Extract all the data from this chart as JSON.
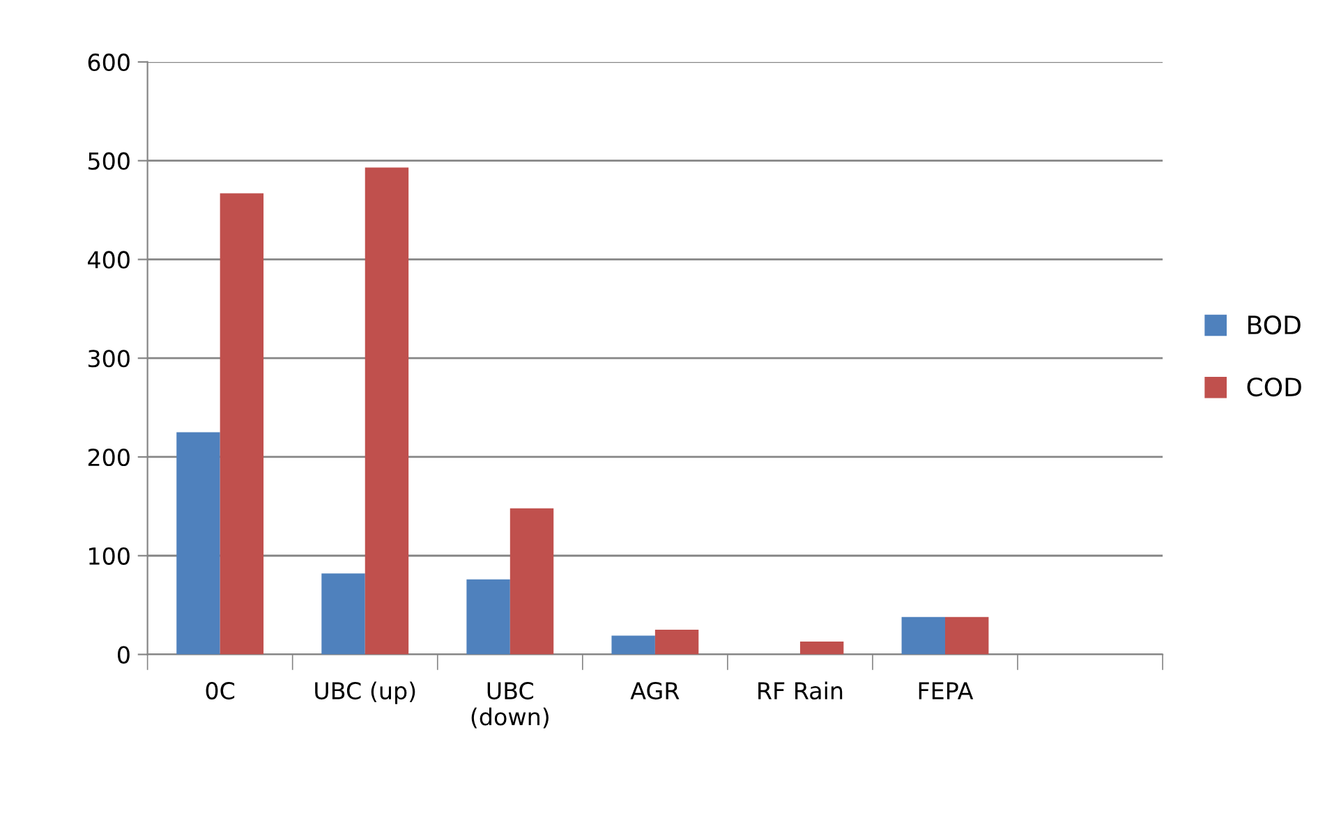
{
  "chart_data": {
    "type": "bar",
    "categories": [
      "0C",
      "UBC (up)",
      "UBC\n(down)",
      "AGR",
      "RF Rain",
      "FEPA",
      null
    ],
    "series": [
      {
        "name": "BOD",
        "color": "#4f81bd",
        "values": [
          225,
          82,
          76,
          19,
          0,
          38,
          null
        ]
      },
      {
        "name": "COD",
        "color": "#c0504d",
        "values": [
          467,
          493,
          148,
          25,
          13,
          38,
          null
        ]
      }
    ],
    "ylim": [
      0,
      600
    ],
    "yticks": [
      0,
      100,
      200,
      300,
      400,
      500,
      600
    ],
    "grid": "y",
    "legend": "right"
  }
}
